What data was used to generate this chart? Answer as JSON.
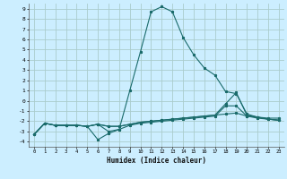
{
  "title": "",
  "xlabel": "Humidex (Indice chaleur)",
  "ylabel": "",
  "bg_color": "#cceeff",
  "grid_color": "#aacccc",
  "line_color": "#1a6b6b",
  "ylim": [
    -4.5,
    9.5
  ],
  "xlim": [
    -0.5,
    23.5
  ],
  "yticks": [
    -4,
    -3,
    -2,
    -1,
    0,
    1,
    2,
    3,
    4,
    5,
    6,
    7,
    8,
    9
  ],
  "xticks": [
    0,
    1,
    2,
    3,
    4,
    5,
    6,
    7,
    8,
    9,
    10,
    11,
    12,
    13,
    14,
    15,
    16,
    17,
    18,
    19,
    20,
    21,
    22,
    23
  ],
  "line1_x": [
    0,
    1,
    2,
    3,
    4,
    5,
    6,
    7,
    8,
    9,
    10,
    11,
    12,
    13,
    14,
    15,
    16,
    17,
    18,
    19,
    20,
    21,
    22,
    23
  ],
  "line1_y": [
    -3.3,
    -2.2,
    -2.4,
    -2.4,
    -2.4,
    -2.5,
    -2.3,
    -3.0,
    -2.8,
    1.0,
    4.8,
    8.7,
    9.2,
    8.7,
    6.2,
    4.5,
    3.2,
    2.5,
    0.9,
    0.7,
    -1.3,
    -1.6,
    -1.7,
    -1.7
  ],
  "line2_x": [
    0,
    1,
    2,
    3,
    4,
    5,
    6,
    7,
    8,
    9,
    10,
    11,
    12,
    13,
    14,
    15,
    16,
    17,
    18,
    19,
    20,
    21,
    22,
    23
  ],
  "line2_y": [
    -3.3,
    -2.2,
    -2.4,
    -2.4,
    -2.4,
    -2.5,
    -3.8,
    -3.2,
    -2.8,
    -2.4,
    -2.2,
    -2.1,
    -2.0,
    -1.9,
    -1.8,
    -1.7,
    -1.6,
    -1.5,
    -0.5,
    -0.5,
    -1.5,
    -1.7,
    -1.8,
    -1.9
  ],
  "line3_x": [
    0,
    1,
    2,
    3,
    4,
    5,
    6,
    7,
    8,
    9,
    10,
    11,
    12,
    13,
    14,
    15,
    16,
    17,
    18,
    19,
    20,
    21,
    22,
    23
  ],
  "line3_y": [
    -3.3,
    -2.2,
    -2.4,
    -2.4,
    -2.4,
    -2.5,
    -2.3,
    -2.5,
    -2.5,
    -2.3,
    -2.1,
    -2.0,
    -1.9,
    -1.8,
    -1.7,
    -1.6,
    -1.5,
    -1.4,
    -0.3,
    0.8,
    -1.4,
    -1.6,
    -1.8,
    -1.9
  ],
  "line4_x": [
    0,
    1,
    2,
    3,
    4,
    5,
    6,
    7,
    8,
    9,
    10,
    11,
    12,
    13,
    14,
    15,
    16,
    17,
    18,
    19,
    20,
    21,
    22,
    23
  ],
  "line4_y": [
    -3.3,
    -2.2,
    -2.4,
    -2.4,
    -2.4,
    -2.5,
    -2.3,
    -2.5,
    -2.5,
    -2.3,
    -2.1,
    -2.0,
    -1.9,
    -1.8,
    -1.7,
    -1.6,
    -1.5,
    -1.4,
    -1.3,
    -1.2,
    -1.5,
    -1.6,
    -1.8,
    -1.9
  ]
}
